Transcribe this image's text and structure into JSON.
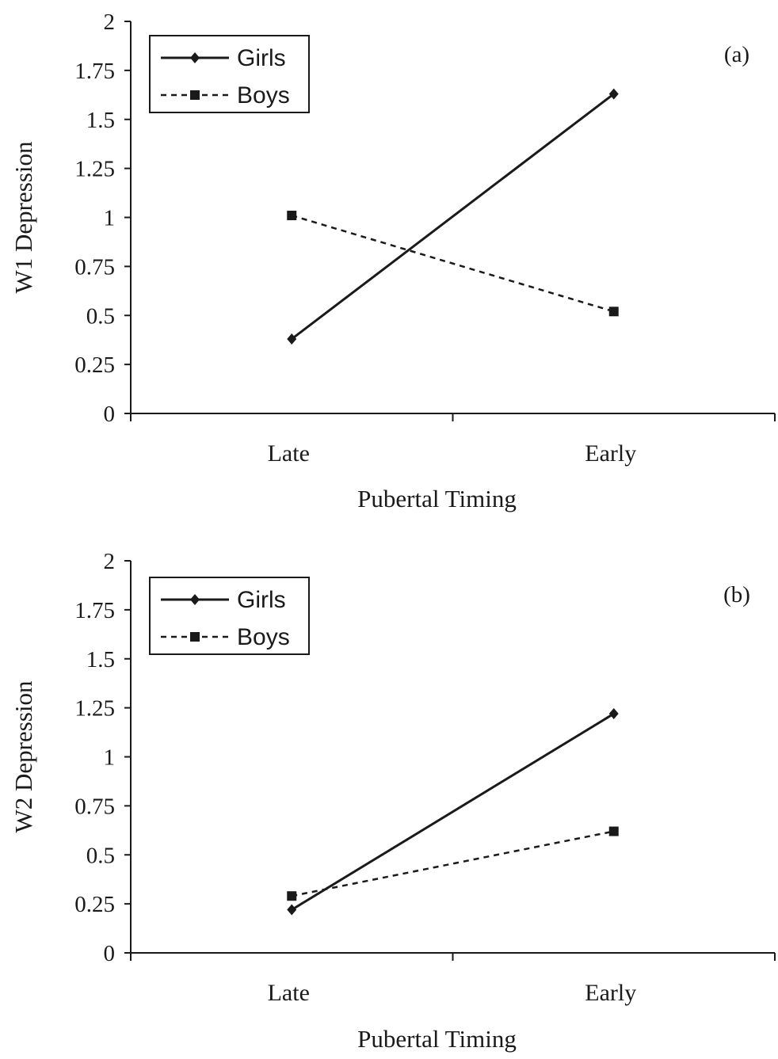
{
  "chart_data": [
    {
      "type": "line",
      "panel_label": "(a)",
      "categories": [
        "Late",
        "Early"
      ],
      "xlabel": "Pubertal Timing",
      "ylabel": "W1 Depression",
      "ylim": [
        0,
        2
      ],
      "yticks": [
        "0",
        "0.25",
        "0.5",
        "0.75",
        "1",
        "1.25",
        "1.5",
        "1.75",
        "2"
      ],
      "legend_position": "top-left",
      "grid": false,
      "series": [
        {
          "name": "Girls",
          "values": [
            0.38,
            1.63
          ],
          "marker": "diamond",
          "line": "solid",
          "color": "#1a1a1a"
        },
        {
          "name": "Boys",
          "values": [
            1.01,
            0.52
          ],
          "marker": "square",
          "line": "dashed",
          "color": "#1a1a1a"
        }
      ]
    },
    {
      "type": "line",
      "panel_label": "(b)",
      "categories": [
        "Late",
        "Early"
      ],
      "xlabel": "Pubertal Timing",
      "ylabel": "W2 Depression",
      "ylim": [
        0,
        2
      ],
      "yticks": [
        "0",
        "0.25",
        "0.5",
        "0.75",
        "1",
        "1.25",
        "1.5",
        "1.75",
        "2"
      ],
      "legend_position": "top-left",
      "grid": false,
      "series": [
        {
          "name": "Girls",
          "values": [
            0.22,
            1.22
          ],
          "marker": "diamond",
          "line": "solid",
          "color": "#1a1a1a"
        },
        {
          "name": "Boys",
          "values": [
            0.29,
            0.62
          ],
          "marker": "square",
          "line": "dashed",
          "color": "#1a1a1a"
        }
      ]
    }
  ]
}
